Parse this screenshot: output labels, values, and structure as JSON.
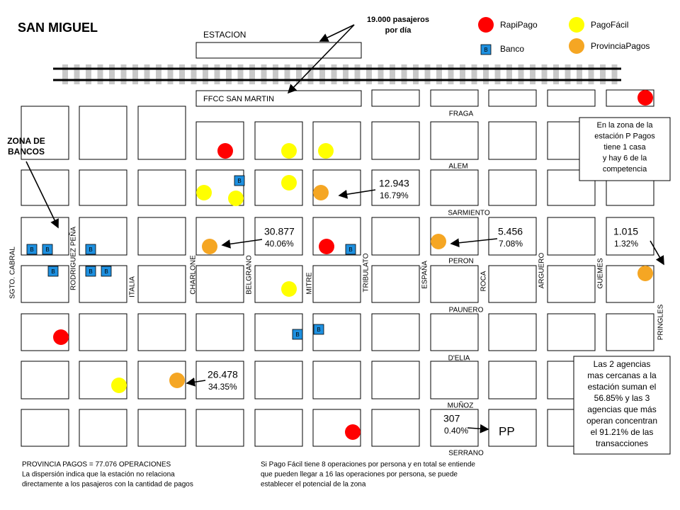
{
  "title": "SAN MIGUEL",
  "station": {
    "top_label": "ESTACION",
    "bottom_label": "FFCC SAN MARTIN",
    "passengers": [
      "19.000 pasajeros",
      "por día"
    ]
  },
  "legend": {
    "rapipago": "RapiPago",
    "pagofacil": "PagoFácil",
    "banco": "Banco",
    "provinciapagos": "ProvinciaPagos",
    "bank_symbol": "B"
  },
  "zone_label": [
    "ZONA DE",
    "BANCOS"
  ],
  "streets_horizontal": [
    "FRAGA",
    "ALEM",
    "SARMIENTO",
    "PERON",
    "PAUNERO",
    "D'ELIA",
    "MUÑOZ",
    "SERRANO"
  ],
  "streets_vertical": [
    "SGTO. CABRAL",
    "RODRIGUEZ PEÑA",
    "ITALIA",
    "CHARLONE",
    "BELGRANO",
    "MITRE",
    "TRIBULATO",
    "ESPAÑA",
    "ROCA",
    "ARGUERO",
    "GUEMES",
    "PRINGLES"
  ],
  "agencies": [
    {
      "operations": "12.943",
      "share": "16.79%"
    },
    {
      "operations": "30.877",
      "share": "40.06%"
    },
    {
      "operations": "5.456",
      "share": "7.08%"
    },
    {
      "operations": "1.015",
      "share": "1.32%"
    },
    {
      "operations": "26.478",
      "share": "34.35%"
    },
    {
      "operations": "307",
      "share": "0.40%"
    }
  ],
  "pp_label": "PP",
  "notes": {
    "station_zone": [
      "En la zona de la",
      "estación P Pagos",
      "tiene 1 casa",
      "y hay 6 de la",
      "competencia"
    ],
    "concentration": [
      "Las 2 agencias",
      "mas cercanas a la",
      "estación suman el",
      "56.85% y las 3",
      "agencias que más",
      "operan concentran",
      "el 91.21% de las",
      "transacciones"
    ]
  },
  "footer": {
    "left": [
      "PROVINCIA PAGOS = 77.076 OPERACIONES",
      "La dispersión indica que la estación no relaciona",
      "directamente a los pasajeros con la cantidad de pagos"
    ],
    "right": [
      "Si Pago Fácil tiene 8 operaciones por persona y en total se entiende",
      "que pueden llegar a 16 las operaciones por persona, se puede",
      "establecer el potencial de la zona"
    ]
  }
}
